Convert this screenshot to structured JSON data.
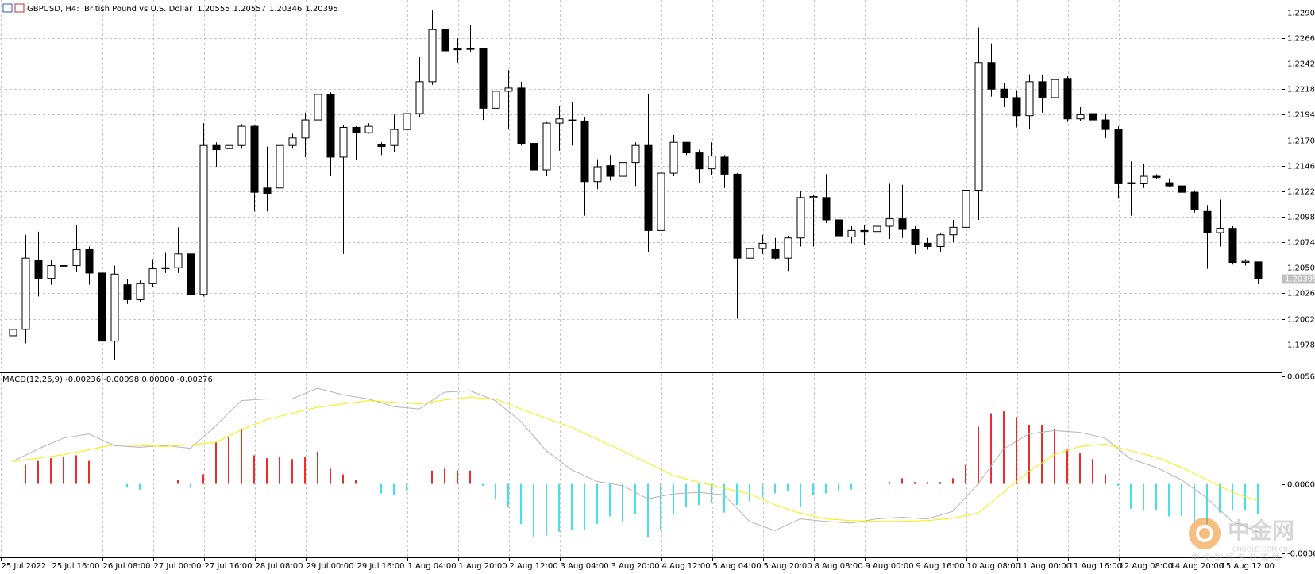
{
  "chart_data": [
    {
      "type": "candlestick",
      "title": "GBPUSD, H4:  British Pound vs U.S. Dollar",
      "up_color": "#ffffff",
      "down_color": "#000000",
      "outline_color": "#000000",
      "price_line_color": "#c0c0c0",
      "grid": true,
      "ylim": [
        1.19561,
        1.23018
      ],
      "yticks": [
        {
          "value": 1.229,
          "label": "1.22900"
        },
        {
          "value": 1.2266,
          "label": "1.22660"
        },
        {
          "value": 1.2242,
          "label": "1.22420"
        },
        {
          "value": 1.2218,
          "label": "1.22180"
        },
        {
          "value": 1.2194,
          "label": "1.21940"
        },
        {
          "value": 1.217,
          "label": "1.21700"
        },
        {
          "value": 1.2146,
          "label": "1.21460"
        },
        {
          "value": 1.2122,
          "label": "1.21220"
        },
        {
          "value": 1.2098,
          "label": "1.20980"
        },
        {
          "value": 1.2074,
          "label": "1.20740"
        },
        {
          "value": 1.205,
          "label": "1.20500"
        },
        {
          "value": 1.2026,
          "label": "1.20260"
        },
        {
          "value": 1.2002,
          "label": "1.20020"
        },
        {
          "value": 1.1978,
          "label": "1.19780"
        }
      ],
      "categories": [
        "25 Jul 2022",
        null,
        null,
        null,
        "25 Jul 16:00",
        null,
        null,
        null,
        "26 Jul 08:00",
        null,
        null,
        null,
        "27 Jul 00:00",
        null,
        null,
        null,
        "27 Jul 16:00",
        null,
        null,
        null,
        "28 Jul 08:00",
        null,
        null,
        null,
        "29 Jul 00:00",
        null,
        null,
        null,
        "29 Jul 16:00",
        null,
        null,
        null,
        "1 Aug 04:00",
        null,
        null,
        null,
        "1 Aug 20:00",
        null,
        null,
        null,
        "2 Aug 12:00",
        null,
        null,
        null,
        "3 Aug 04:00",
        null,
        null,
        null,
        "3 Aug 20:00",
        null,
        null,
        null,
        "4 Aug 12:00",
        null,
        null,
        null,
        "5 Aug 04:00",
        null,
        null,
        null,
        "5 Aug 20:00",
        null,
        null,
        null,
        "8 Aug 08:00",
        null,
        null,
        null,
        "9 Aug 00:00",
        null,
        null,
        null,
        "9 Aug 16:00",
        null,
        null,
        null,
        "10 Aug 08:00",
        null,
        null,
        null,
        "11 Aug 00:00",
        null,
        null,
        null,
        "11 Aug 16:00",
        null,
        null,
        null,
        "12 Aug 08:00",
        null,
        null,
        null,
        "14 Aug 20:00",
        null,
        null,
        null,
        "15 Aug 12:00",
        null,
        null
      ],
      "candles": [
        [
          1.1986,
          1.1998,
          1.1963,
          1.1992
        ],
        [
          1.1992,
          1.2081,
          1.1979,
          1.2059
        ],
        [
          1.2057,
          1.2084,
          1.2023,
          1.204
        ],
        [
          1.204,
          1.2057,
          1.2034,
          1.2052
        ],
        [
          1.2052,
          1.2056,
          1.204,
          1.2052
        ],
        [
          1.2052,
          1.209,
          1.2046,
          1.2067
        ],
        [
          1.2067,
          1.207,
          1.2034,
          1.2045
        ],
        [
          1.2045,
          1.2049,
          1.1971,
          1.1981
        ],
        [
          1.1981,
          1.2052,
          1.1963,
          1.2044
        ],
        [
          1.2034,
          1.2039,
          1.2016,
          1.202
        ],
        [
          1.202,
          1.2038,
          1.2018,
          1.2035
        ],
        [
          1.2035,
          1.2058,
          1.2032,
          1.2049
        ],
        [
          1.2049,
          1.2064,
          1.2045,
          1.205
        ],
        [
          1.205,
          1.2088,
          1.2045,
          1.2063
        ],
        [
          1.2063,
          1.2067,
          1.202,
          1.2025
        ],
        [
          1.2025,
          1.2186,
          1.2023,
          1.2165
        ],
        [
          1.2165,
          1.2168,
          1.2145,
          1.2161
        ],
        [
          1.2162,
          1.2172,
          1.2142,
          1.2165
        ],
        [
          1.2165,
          1.2185,
          1.2162,
          1.2183
        ],
        [
          1.2183,
          1.2184,
          1.2103,
          1.2121
        ],
        [
          1.2125,
          1.2164,
          1.2103,
          1.212
        ],
        [
          1.2125,
          1.2167,
          1.211,
          1.2165
        ],
        [
          1.2165,
          1.2176,
          1.2162,
          1.2172
        ],
        [
          1.2172,
          1.2196,
          1.2154,
          1.2189
        ],
        [
          1.2189,
          1.2245,
          1.2169,
          1.2213
        ],
        [
          1.2213,
          1.2215,
          1.2136,
          1.2154
        ],
        [
          1.2154,
          1.2184,
          1.2063,
          1.2182
        ],
        [
          1.2182,
          1.2183,
          1.2151,
          1.2177
        ],
        [
          1.2177,
          1.2186,
          1.2176,
          1.2183
        ],
        [
          1.2166,
          1.2168,
          1.2156,
          1.2164
        ],
        [
          1.2165,
          1.2194,
          1.2159,
          1.218
        ],
        [
          1.218,
          1.2208,
          1.2176,
          1.2195
        ],
        [
          1.2195,
          1.2248,
          1.2192,
          1.2225
        ],
        [
          1.2225,
          1.2292,
          1.2222,
          1.2274
        ],
        [
          1.2274,
          1.2283,
          1.2243,
          1.2254
        ],
        [
          1.2256,
          1.2266,
          1.2243,
          1.2255
        ],
        [
          1.2256,
          1.2278,
          1.2253,
          1.2256
        ],
        [
          1.2256,
          1.2257,
          1.2189,
          1.22
        ],
        [
          1.22,
          1.2226,
          1.2191,
          1.2216
        ],
        [
          1.2216,
          1.2236,
          1.218,
          1.2219
        ],
        [
          1.2219,
          1.2225,
          1.2165,
          1.2167
        ],
        [
          1.2167,
          1.2202,
          1.2139,
          1.2142
        ],
        [
          1.2142,
          1.2187,
          1.2136,
          1.2186
        ],
        [
          1.2186,
          1.2202,
          1.216,
          1.219
        ],
        [
          1.2189,
          1.2206,
          1.2165,
          1.2188
        ],
        [
          1.2188,
          1.2192,
          1.2099,
          1.2131
        ],
        [
          1.2131,
          1.2152,
          1.2124,
          1.2145
        ],
        [
          1.2146,
          1.2156,
          1.2132,
          1.2136
        ],
        [
          1.2136,
          1.2167,
          1.2132,
          1.2149
        ],
        [
          1.2149,
          1.2168,
          1.2127,
          1.2165
        ],
        [
          1.2165,
          1.2213,
          1.2065,
          1.2085
        ],
        [
          1.2085,
          1.2143,
          1.2071,
          1.2139
        ],
        [
          1.2139,
          1.2175,
          1.2136,
          1.2168
        ],
        [
          1.2168,
          1.2168,
          1.2156,
          1.2158
        ],
        [
          1.2158,
          1.2161,
          1.213,
          1.2143
        ],
        [
          1.2143,
          1.2168,
          1.2137,
          1.2155
        ],
        [
          1.2154,
          1.2156,
          1.2125,
          1.2138
        ],
        [
          1.2138,
          1.2139,
          1.2002,
          1.2059
        ],
        [
          1.2059,
          1.2092,
          1.2052,
          1.2068
        ],
        [
          1.2068,
          1.2081,
          1.2063,
          1.2073
        ],
        [
          1.2067,
          1.2078,
          1.2058,
          1.2059
        ],
        [
          1.2059,
          1.208,
          1.2047,
          1.2078
        ],
        [
          1.2078,
          1.2122,
          1.207,
          1.2116
        ],
        [
          1.2116,
          1.2119,
          1.207,
          1.2117
        ],
        [
          1.2116,
          1.2138,
          1.2092,
          1.2095
        ],
        [
          1.2095,
          1.2096,
          1.207,
          1.208
        ],
        [
          1.2079,
          1.2089,
          1.2073,
          1.2085
        ],
        [
          1.2085,
          1.209,
          1.2071,
          1.2084
        ],
        [
          1.2084,
          1.2096,
          1.2064,
          1.2089
        ],
        [
          1.2089,
          1.2129,
          1.2077,
          1.2096
        ],
        [
          1.2096,
          1.2128,
          1.2078,
          1.2086
        ],
        [
          1.2086,
          1.2089,
          1.2063,
          1.2072
        ],
        [
          1.2073,
          1.2078,
          1.2067,
          1.207
        ],
        [
          1.207,
          1.2083,
          1.2065,
          1.2081
        ],
        [
          1.2081,
          1.2095,
          1.2074,
          1.2088
        ],
        [
          1.2088,
          1.2125,
          1.208,
          1.2123
        ],
        [
          1.2123,
          1.2276,
          1.2095,
          1.2243
        ],
        [
          1.2243,
          1.2261,
          1.2211,
          1.2218
        ],
        [
          1.2218,
          1.2224,
          1.2201,
          1.221
        ],
        [
          1.221,
          1.2217,
          1.2182,
          1.2193
        ],
        [
          1.2193,
          1.2232,
          1.218,
          1.2225
        ],
        [
          1.2225,
          1.2231,
          1.2196,
          1.221
        ],
        [
          1.221,
          1.2248,
          1.2194,
          1.2227
        ],
        [
          1.2228,
          1.223,
          1.2187,
          1.219
        ],
        [
          1.219,
          1.2201,
          1.2188,
          1.2194
        ],
        [
          1.2195,
          1.2201,
          1.2182,
          1.2189
        ],
        [
          1.2189,
          1.2195,
          1.2172,
          1.218
        ],
        [
          1.218,
          1.2183,
          1.2115,
          1.2129
        ],
        [
          1.2129,
          1.215,
          1.2099,
          1.213
        ],
        [
          1.2129,
          1.2148,
          1.2125,
          1.2136
        ],
        [
          1.2136,
          1.2138,
          1.2133,
          1.2135
        ],
        [
          1.213,
          1.2134,
          1.2126,
          1.2127
        ],
        [
          1.2127,
          1.2147,
          1.212,
          1.2121
        ],
        [
          1.2121,
          1.2123,
          1.2102,
          1.2105
        ],
        [
          1.2103,
          1.2109,
          1.2049,
          1.2083
        ],
        [
          1.2083,
          1.2114,
          1.207,
          1.2087
        ],
        [
          1.2087,
          1.2089,
          1.2053,
          1.2055
        ],
        [
          1.2055,
          1.2058,
          1.2052,
          1.2056
        ],
        [
          1.20555,
          1.20557,
          1.20346,
          1.20395
        ]
      ]
    },
    {
      "type": "macd",
      "title": "MACD(12,26,9) -0.00236 -0.00098 0.00000 -0.00276",
      "up_color": "#ee2c2c",
      "down_color": "#48e0e8",
      "ylim": [
        -0.00384,
        0.00584
      ],
      "yticks": [
        0.00563,
        {
          "value": 0,
          "label": "0.00000"
        },
        -0.00365
      ],
      "values": [
        0,
        0.001,
        0.0012,
        0.00135,
        0.0014,
        0.0015,
        0.0012,
        0,
        0,
        -0.0002,
        -0.0003,
        0,
        0,
        0.0002,
        -0.0002,
        0.0005,
        0.0022,
        0.0025,
        0.0029,
        0.0015,
        0.00135,
        0.0014,
        0.0013,
        0.0014,
        0.0017,
        0.0008,
        0.0005,
        0.0002,
        0,
        -0.0005,
        -0.0006,
        -0.0004,
        0,
        0.0007,
        0.0008,
        0.0007,
        0.0007,
        -0.0001,
        -0.0008,
        -0.0012,
        -0.0021,
        -0.0028,
        -0.0027,
        -0.0025,
        -0.0024,
        -0.0024,
        -0.0021,
        -0.0017,
        -0.002,
        -0.0016,
        -0.0028,
        -0.0024,
        -0.0016,
        -0.0012,
        -0.0011,
        -0.001,
        -0.0015,
        -0.0011,
        -0.0009,
        -0.0007,
        -0.0005,
        -0.0004,
        -0.0012,
        -0.0006,
        -0.0005,
        -0.0004,
        -0.0003,
        0,
        0,
        0.0001,
        0.0003,
        0.0001,
        0.0001,
        0.0001,
        0.0003,
        0.001,
        0.003,
        0.0037,
        0.0038,
        0.0035,
        0.0031,
        0.0031,
        0.0029,
        0.0018,
        0.0016,
        0.0013,
        0.0005,
        -0.0001,
        -0.0013,
        -0.0014,
        -0.0014,
        -0.0017,
        -0.0017,
        -0.002,
        -0.0021,
        -0.0015,
        -0.0014,
        -0.0014,
        -0.0016
      ],
      "series": [
        {
          "color": "#b4b4b4",
          "x": [
            0,
            2,
            4,
            6,
            8,
            10,
            12,
            14,
            16,
            18,
            20,
            22,
            24,
            26,
            28,
            30,
            32,
            34,
            36,
            38,
            40,
            42,
            44,
            46,
            48,
            50,
            52,
            54,
            56,
            58,
            60,
            62,
            64,
            66,
            68,
            70,
            72,
            74,
            76,
            78,
            80,
            82,
            84,
            86,
            88,
            90,
            92,
            94,
            96,
            98
          ],
          "values": [
            0.00118,
            0.00183,
            0.0024,
            0.00262,
            0.00201,
            0.00192,
            0.00201,
            0.00187,
            0.00305,
            0.00436,
            0.00445,
            0.00445,
            0.00501,
            0.00467,
            0.00445,
            0.00405,
            0.00392,
            0.0048,
            0.00488,
            0.00436,
            0.00327,
            0.00174,
            0.00074,
            0.00013,
            -9e-05,
            -0.00078,
            -0.00052,
            -0.00044,
            -0.00057,
            -0.00196,
            -0.00244,
            -0.00183,
            -0.00196,
            -0.00205,
            -0.00183,
            -0.00174,
            -0.00183,
            -0.00144,
            0,
            0.00183,
            0.00262,
            0.00279,
            0.0027,
            0.0024,
            0.00131,
            0.00087,
            0.00022,
            -0.00074,
            -0.00196,
            -0.00249
          ]
        },
        {
          "color": "#f2f200",
          "x": [
            0,
            2,
            4,
            6,
            8,
            10,
            12,
            14,
            16,
            18,
            20,
            22,
            24,
            26,
            28,
            30,
            32,
            34,
            36,
            38,
            40,
            42,
            44,
            46,
            48,
            50,
            52,
            54,
            56,
            58,
            60,
            62,
            64,
            66,
            68,
            70,
            72,
            74,
            76,
            78,
            80,
            82,
            84,
            86,
            88,
            90,
            92,
            94,
            96,
            98
          ],
          "values": [
            0.00118,
            0.00135,
            0.00153,
            0.00179,
            0.00205,
            0.00201,
            0.00196,
            0.00205,
            0.00218,
            0.00283,
            0.00336,
            0.00371,
            0.00401,
            0.00419,
            0.00436,
            0.00427,
            0.00419,
            0.0044,
            0.00453,
            0.00445,
            0.00392,
            0.00344,
            0.00296,
            0.00235,
            0.00174,
            0.00109,
            0.00044,
            9e-05,
            -0.00022,
            -0.00052,
            -0.00109,
            -0.00153,
            -0.00183,
            -0.00192,
            -0.00196,
            -0.00196,
            -0.00192,
            -0.00179,
            -0.00153,
            -0.00044,
            0.00065,
            0.00153,
            0.00196,
            0.00209,
            0.00174,
            0.0014,
            0.00087,
            0.00022,
            -0.00044,
            -0.00087
          ]
        }
      ]
    }
  ],
  "watermark": {
    "name": "中金网",
    "site": "CNGOLD.COM.CN",
    "slogan": "中 文 财 经 专 业 媒 体"
  }
}
